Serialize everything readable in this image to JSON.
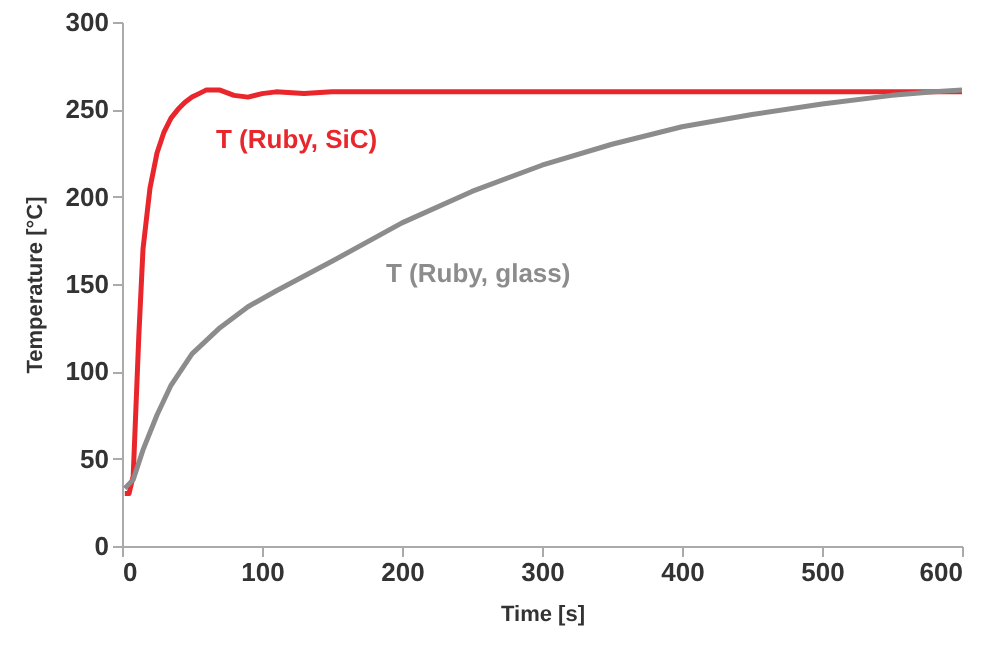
{
  "chart_data": {
    "type": "line",
    "xlabel": "Time [s]",
    "ylabel": "Temperature [°C]",
    "xlim": [
      0,
      600
    ],
    "ylim": [
      0,
      300
    ],
    "xticks": [
      0,
      100,
      200,
      300,
      400,
      500,
      600
    ],
    "yticks": [
      0,
      50,
      100,
      150,
      200,
      250,
      300
    ],
    "grid": false,
    "marker": "none",
    "line_style": "solid",
    "series": [
      {
        "name": "T (Ruby, SiC)",
        "color": "#e8262b",
        "x": [
          2,
          5,
          8,
          10,
          12,
          15,
          20,
          25,
          30,
          35,
          40,
          45,
          50,
          55,
          60,
          70,
          80,
          90,
          100,
          110,
          130,
          150,
          200,
          300,
          400,
          500,
          600
        ],
        "values": [
          30,
          30,
          40,
          80,
          120,
          170,
          205,
          225,
          237,
          245,
          250,
          254,
          257,
          259,
          261,
          261,
          258,
          257,
          259,
          260,
          259,
          260,
          260,
          260,
          260,
          260,
          260
        ]
      },
      {
        "name": "T (Ruby, glass)",
        "color": "#8c8c8c",
        "x": [
          2,
          8,
          15,
          25,
          35,
          50,
          70,
          90,
          110,
          150,
          200,
          250,
          300,
          350,
          400,
          450,
          500,
          550,
          580,
          600
        ],
        "values": [
          33,
          38,
          55,
          75,
          92,
          110,
          125,
          137,
          146,
          163,
          185,
          203,
          218,
          230,
          240,
          247,
          253,
          258,
          260,
          261
        ]
      }
    ]
  }
}
